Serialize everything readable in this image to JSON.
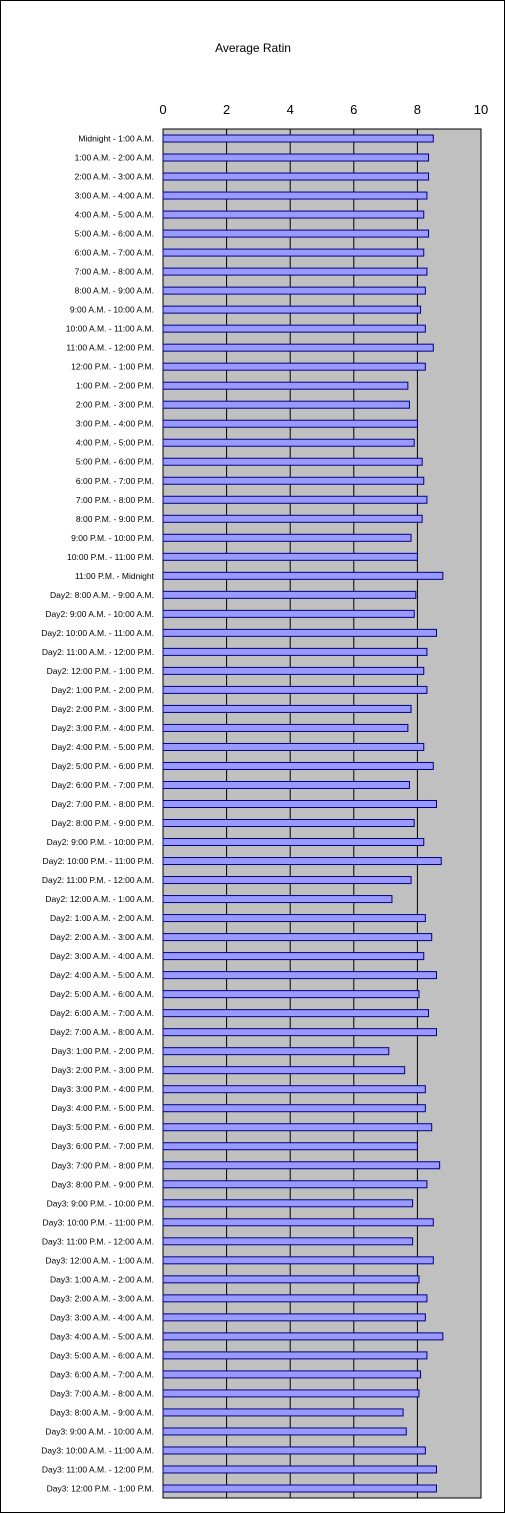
{
  "chart_data": {
    "type": "bar",
    "orientation": "horizontal",
    "title": "Average Ratin",
    "xlim": [
      0,
      10
    ],
    "x_ticks": [
      "0",
      "2",
      "4",
      "6",
      "8",
      "10"
    ],
    "x_axis_position": "top",
    "grid": true,
    "legend": "none",
    "colors": {
      "bar_fill": "#9999ff",
      "bar_stroke": "#000080",
      "plot_background": "#c0c0c0",
      "gridline": "#000000"
    },
    "categories": [
      "Midnight - 1:00 A.M.",
      "1:00 A.M. - 2:00 A.M.",
      "2:00 A.M. - 3:00 A.M.",
      "3:00 A.M. - 4:00 A.M.",
      "4:00 A.M. - 5:00 A.M.",
      "5:00 A.M. - 6:00 A.M.",
      "6:00 A.M. - 7:00 A.M.",
      "7:00 A.M. - 8:00 A.M.",
      "8:00 A.M. - 9:00 A.M.",
      "9:00 A.M. - 10:00 A.M.",
      "10:00 A.M. - 11:00 A.M.",
      "11:00 A.M. - 12:00 P.M.",
      "12:00 P.M. - 1:00 P.M.",
      "1:00 P.M. - 2:00 P.M.",
      "2:00 P.M. - 3:00 P.M.",
      "3:00 P.M. - 4:00 P.M.",
      "4:00 P.M. - 5:00 P.M.",
      "5:00 P.M. - 6:00 P.M.",
      "6:00 P.M. - 7:00 P.M.",
      "7:00 P.M. - 8:00 P.M.",
      "8:00 P.M. - 9:00 P.M.",
      "9:00 P.M. - 10:00 P.M.",
      "10:00 P.M. - 11:00 P.M.",
      "11:00 P.M. - Midnight",
      "Day2: 8:00 A.M. - 9:00 A.M.",
      "Day2: 9:00 A.M. - 10:00 A.M.",
      "Day2: 10:00 A.M. - 11:00 A.M.",
      "Day2: 11:00 A.M. - 12:00 P.M.",
      "Day2: 12:00 P.M. - 1:00 P.M.",
      "Day2: 1:00 P.M. - 2:00 P.M.",
      "Day2: 2:00 P.M. - 3:00 P.M.",
      "Day2: 3:00 P.M. - 4:00 P.M.",
      "Day2: 4:00 P.M. - 5:00 P.M.",
      "Day2: 5:00 P.M. - 6:00 P.M.",
      "Day2: 6:00 P.M. - 7:00 P.M.",
      "Day2: 7:00 P.M. - 8:00 P.M.",
      "Day2: 8:00 P.M. - 9:00 P.M.",
      "Day2: 9:00 P.M. - 10:00 P.M.",
      "Day2: 10:00 P.M. - 11:00 P.M.",
      "Day2: 11:00 P.M. - 12:00 A.M.",
      "Day2: 12:00 A.M. - 1:00 A.M.",
      "Day2: 1:00 A.M. - 2:00 A.M.",
      "Day2: 2:00 A.M. - 3:00 A.M.",
      "Day2: 3:00 A.M. - 4:00 A.M.",
      "Day2: 4:00 A.M. - 5:00 A.M.",
      "Day2: 5:00 A.M. - 6:00 A.M.",
      "Day2: 6:00 A.M. - 7:00 A.M.",
      "Day2: 7:00 A.M. - 8:00 A.M.",
      "Day3: 1:00 P.M. - 2:00 P.M.",
      "Day3: 2:00 P.M. - 3:00 P.M.",
      "Day3: 3:00 P.M. - 4:00 P.M.",
      "Day3: 4:00 P.M. - 5:00 P.M.",
      "Day3: 5:00 P.M. - 6:00 P.M.",
      "Day3: 6:00 P.M. - 7:00 P.M.",
      "Day3: 7:00 P.M. - 8:00 P.M.",
      "Day3: 8:00 P.M. - 9:00 P.M.",
      "Day3: 9:00 P.M. - 10:00 P.M.",
      "Day3: 10:00 P.M. - 11:00 P.M.",
      "Day3: 11:00 P.M. - 12:00 A.M.",
      "Day3: 12:00 A.M. - 1:00 A.M.",
      "Day3: 1:00 A.M. - 2:00 A.M.",
      "Day3: 2:00 A.M. - 3:00 A.M.",
      "Day3: 3:00 A.M. - 4:00 A.M.",
      "Day3: 4:00 A.M. - 5:00 A.M.",
      "Day3: 5:00 A.M. - 6:00 A.M.",
      "Day3: 6:00 A.M. - 7:00 A.M.",
      "Day3: 7:00 A.M. - 8:00 A.M.",
      "Day3: 8:00 A.M. - 9:00 A.M.",
      "Day3: 9:00 A.M. - 10:00 A.M.",
      "Day3: 10:00 A.M. - 11:00 A.M.",
      "Day3: 11:00 A.M. - 12:00 P.M.",
      "Day3: 12:00 P.M. - 1:00 P.M."
    ],
    "values": [
      8.5,
      8.35,
      8.35,
      8.3,
      8.2,
      8.35,
      8.2,
      8.3,
      8.25,
      8.1,
      8.25,
      8.5,
      8.25,
      7.7,
      7.75,
      8.0,
      7.9,
      8.15,
      8.2,
      8.3,
      8.15,
      7.8,
      8.0,
      8.8,
      7.95,
      7.9,
      8.6,
      8.3,
      8.2,
      8.3,
      7.8,
      7.7,
      8.2,
      8.5,
      7.75,
      8.6,
      7.9,
      8.2,
      8.75,
      7.8,
      7.2,
      8.25,
      8.45,
      8.2,
      8.6,
      8.05,
      8.35,
      8.6,
      7.1,
      7.6,
      8.25,
      8.25,
      8.45,
      8.0,
      8.7,
      8.3,
      7.85,
      8.5,
      7.85,
      8.5,
      8.05,
      8.3,
      8.25,
      8.8,
      8.3,
      8.1,
      8.05,
      7.55,
      7.65,
      8.25,
      8.6,
      8.6
    ]
  }
}
